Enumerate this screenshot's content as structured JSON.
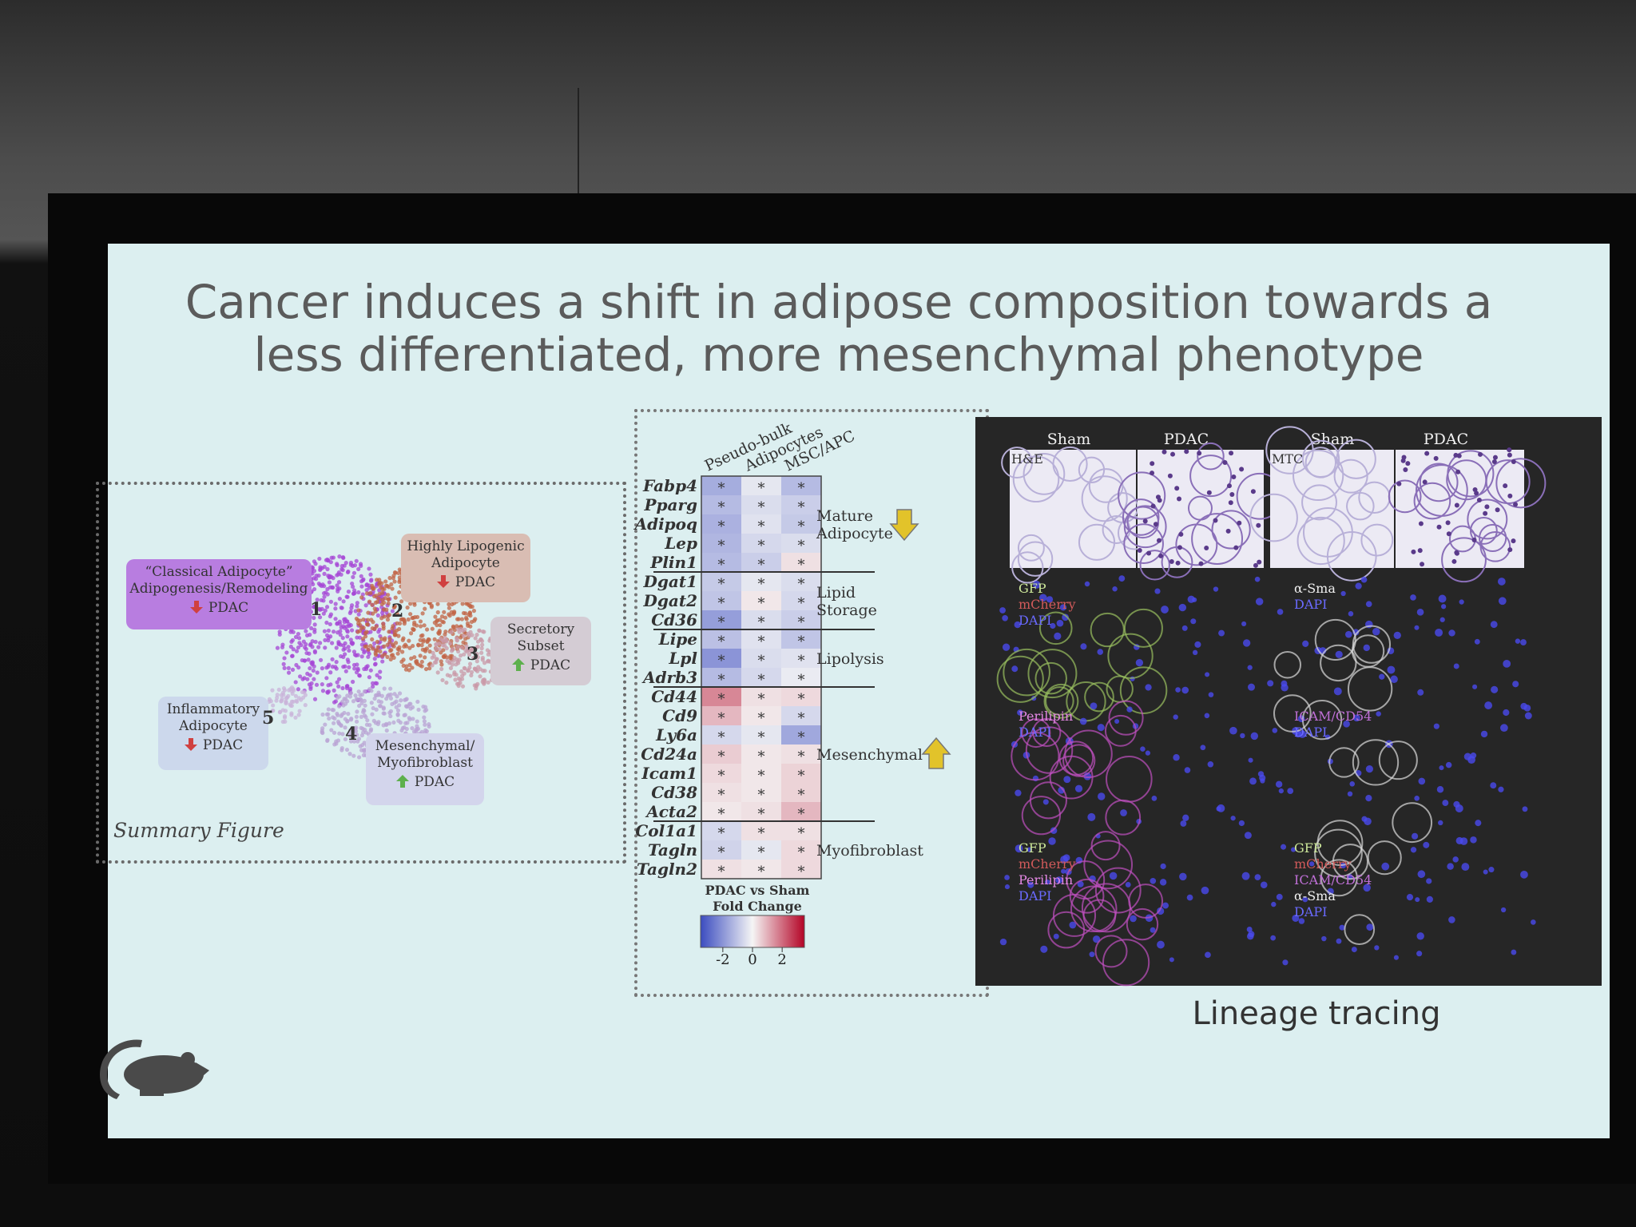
{
  "slide": {
    "title": "Cancer induces a shift in adipose composition towards a less differentiated, more mesenchymal phenotype"
  },
  "summary_figure": {
    "caption": "Summary Figure",
    "clusters": [
      {
        "number": 1,
        "label": "“Classical Adipocyte”\nAdipogenesis/Remodeling",
        "change": "down",
        "condition": "PDAC",
        "color": "#b87de0"
      },
      {
        "number": 2,
        "label": "Highly Lipogenic\nAdipocyte",
        "change": "down",
        "condition": "PDAC",
        "color": "#d9bdb3"
      },
      {
        "number": 3,
        "label": "Secretory\nSubset",
        "change": "up",
        "condition": "PDAC",
        "color": "#d4ccd4"
      },
      {
        "number": 4,
        "label": "Mesenchymal/\nMyofibroblast",
        "change": "up",
        "condition": "PDAC",
        "color": "#d3d5ec"
      },
      {
        "number": 5,
        "label": "Inflammatory\nAdipocyte",
        "change": "down",
        "condition": "PDAC",
        "color": "#ccd8ec"
      }
    ]
  },
  "heatmap": {
    "columns": [
      "Pseudo-bulk",
      "Adipocytes",
      "MSC/APC"
    ],
    "rows": [
      "Fabp4",
      "Pparg",
      "Adipoq",
      "Lep",
      "Plin1",
      "Dgat1",
      "Dgat2",
      "Cd36",
      "Lipe",
      "Lpl",
      "Adrb3",
      "Cd44",
      "Cd9",
      "Ly6a",
      "Cd24a",
      "Icam1",
      "Cd38",
      "Acta2",
      "Col1a1",
      "Tagln",
      "Tagln2"
    ],
    "values": [
      [
        -1.5,
        -0.3,
        -1.2
      ],
      [
        -1.2,
        -0.5,
        -0.8
      ],
      [
        -1.4,
        -0.4,
        -0.9
      ],
      [
        -1.3,
        -0.6,
        -0.5
      ],
      [
        -1.2,
        -0.8,
        0.3
      ],
      [
        -0.9,
        -0.3,
        -0.5
      ],
      [
        -1.0,
        0.2,
        -0.6
      ],
      [
        -1.8,
        -0.5,
        -0.8
      ],
      [
        -1.1,
        -0.4,
        -1.0
      ],
      [
        -2.0,
        -0.5,
        -0.4
      ],
      [
        -1.2,
        -0.6,
        -0.2
      ],
      [
        1.6,
        0.3,
        0.4
      ],
      [
        0.9,
        0.2,
        -0.6
      ],
      [
        -0.6,
        -0.3,
        -1.6
      ],
      [
        0.6,
        0.2,
        0.3
      ],
      [
        0.4,
        0.2,
        0.5
      ],
      [
        0.3,
        0.2,
        0.5
      ],
      [
        0.2,
        0.3,
        0.9
      ],
      [
        -0.6,
        0.3,
        0.3
      ],
      [
        -0.7,
        -0.3,
        0.4
      ],
      [
        0.3,
        0.2,
        0.4
      ]
    ],
    "marker": "*",
    "groups": [
      {
        "label": "Mature\nAdipocyte",
        "arrow": "down"
      },
      {
        "label": "Lipid\nStorage"
      },
      {
        "label": "Lipolysis"
      },
      {
        "label": "Mesenchymal",
        "arrow": "up"
      },
      {
        "label": "Myofibroblast"
      }
    ],
    "legend_title": "PDAC vs Sham\nFold Change",
    "clim": [
      -3.5,
      3.5
    ],
    "colorbar_ticks": [
      -2,
      0,
      2
    ],
    "colors": {
      "low": "#3b4cc0",
      "mid": "#f5f5f5",
      "high": "#b40426"
    }
  },
  "lineage": {
    "caption": "Lineage tracing",
    "columns": [
      "Sham",
      "PDAC",
      "Sham",
      "PDAC"
    ],
    "stains": [
      "H&E",
      "MTC"
    ],
    "panels": [
      {
        "channels": [
          {
            "name": "GFP",
            "color": "#cde89a"
          },
          {
            "name": "mCherry",
            "color": "#d05a5a"
          },
          {
            "name": "DAPI",
            "color": "#6a6aff"
          }
        ]
      },
      {
        "channels": [
          {
            "name": "α-Sma",
            "color": "#f0f0f0"
          },
          {
            "name": "DAPI",
            "color": "#6a6aff"
          }
        ]
      },
      {
        "channels": [
          {
            "name": "Perilipin",
            "color": "#e488e4"
          },
          {
            "name": "DAPI",
            "color": "#6a6aff"
          }
        ]
      },
      {
        "channels": [
          {
            "name": "ICAM/CD54",
            "color": "#c070d8"
          },
          {
            "name": "DAPI",
            "color": "#6a6aff"
          }
        ]
      },
      {
        "channels": [
          {
            "name": "GFP",
            "color": "#cde89a"
          },
          {
            "name": "mCherry",
            "color": "#d05a5a"
          },
          {
            "name": "Perilipin",
            "color": "#e488e4"
          },
          {
            "name": "DAPI",
            "color": "#6a6aff"
          }
        ]
      },
      {
        "channels": [
          {
            "name": "GFP",
            "color": "#cde89a"
          },
          {
            "name": "mCherry",
            "color": "#d05a5a"
          },
          {
            "name": "ICAM/CD54",
            "color": "#c070d8"
          },
          {
            "name": "α-Sma",
            "color": "#f0f0f0"
          },
          {
            "name": "DAPI",
            "color": "#6a6aff"
          }
        ]
      }
    ]
  }
}
